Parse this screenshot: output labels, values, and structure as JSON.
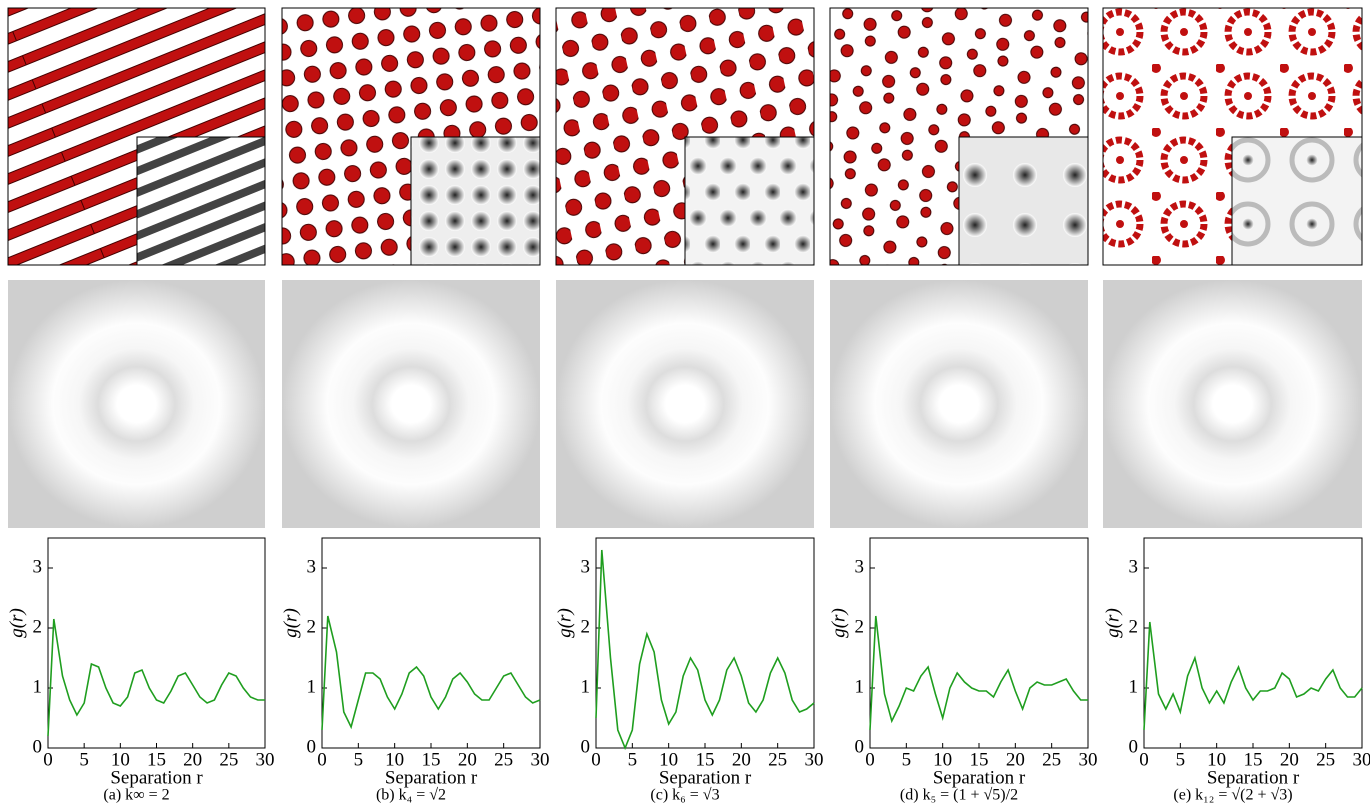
{
  "chart_data": [
    {
      "type": "line",
      "caption": "(a) k∞ = 2",
      "xlabel": "Separation r",
      "ylabel": "g(r)",
      "color": "#1f9e1f",
      "xlim": [
        0,
        30
      ],
      "ylim": [
        0,
        3.5
      ],
      "xticks": [
        0,
        5,
        10,
        15,
        20,
        25,
        30
      ],
      "yticks": [
        0,
        1,
        2,
        3
      ],
      "x": [
        0,
        0.8,
        2,
        3,
        4,
        5,
        6,
        7,
        8,
        9,
        10,
        11,
        12,
        13,
        14,
        15,
        16,
        17,
        18,
        19,
        20,
        21,
        22,
        23,
        24,
        25,
        26,
        27,
        28,
        29,
        30
      ],
      "values": [
        0.2,
        2.15,
        1.2,
        0.8,
        0.55,
        0.75,
        1.4,
        1.35,
        1.0,
        0.75,
        0.7,
        0.85,
        1.25,
        1.3,
        1.0,
        0.8,
        0.75,
        0.95,
        1.2,
        1.25,
        1.05,
        0.85,
        0.75,
        0.8,
        1.05,
        1.25,
        1.2,
        1.0,
        0.85,
        0.8,
        0.8
      ]
    },
    {
      "type": "line",
      "caption": "(b) k₄ = √2",
      "xlabel": "Separation r",
      "ylabel": "g(r)",
      "color": "#1f9e1f",
      "xlim": [
        0,
        30
      ],
      "ylim": [
        0,
        3.5
      ],
      "xticks": [
        0,
        5,
        10,
        15,
        20,
        25,
        30
      ],
      "yticks": [
        0,
        1,
        2,
        3
      ],
      "x": [
        0,
        0.8,
        2,
        3,
        4,
        5,
        6,
        7,
        8,
        9,
        10,
        11,
        12,
        13,
        14,
        15,
        16,
        17,
        18,
        19,
        20,
        21,
        22,
        23,
        24,
        25,
        26,
        27,
        28,
        29,
        30
      ],
      "values": [
        0.3,
        2.2,
        1.6,
        0.6,
        0.35,
        0.8,
        1.25,
        1.25,
        1.15,
        0.85,
        0.65,
        0.9,
        1.25,
        1.35,
        1.2,
        0.85,
        0.65,
        0.85,
        1.15,
        1.25,
        1.1,
        0.9,
        0.8,
        0.8,
        1.0,
        1.2,
        1.25,
        1.05,
        0.85,
        0.75,
        0.8
      ]
    },
    {
      "type": "line",
      "caption": "(c) k₆ = √3",
      "xlabel": "Separation r",
      "ylabel": "g(r)",
      "color": "#1f9e1f",
      "xlim": [
        0,
        30
      ],
      "ylim": [
        0,
        3.5
      ],
      "xticks": [
        0,
        5,
        10,
        15,
        20,
        25,
        30
      ],
      "yticks": [
        0,
        1,
        2,
        3
      ],
      "x": [
        0,
        0.8,
        2,
        3,
        4,
        5,
        6,
        7,
        8,
        9,
        10,
        11,
        12,
        13,
        14,
        15,
        16,
        17,
        18,
        19,
        20,
        21,
        22,
        23,
        24,
        25,
        26,
        27,
        28,
        29,
        30
      ],
      "values": [
        0.5,
        3.3,
        1.5,
        0.3,
        0.0,
        0.3,
        1.4,
        1.9,
        1.6,
        0.8,
        0.4,
        0.6,
        1.2,
        1.5,
        1.3,
        0.8,
        0.55,
        0.8,
        1.3,
        1.5,
        1.2,
        0.75,
        0.6,
        0.8,
        1.25,
        1.5,
        1.25,
        0.8,
        0.6,
        0.65,
        0.75
      ]
    },
    {
      "type": "line",
      "caption": "(d) k₅ = (1 + √5)/2",
      "xlabel": "Separation r",
      "ylabel": "g(r)",
      "color": "#1f9e1f",
      "xlim": [
        0,
        30
      ],
      "ylim": [
        0,
        3.5
      ],
      "xticks": [
        0,
        5,
        10,
        15,
        20,
        25,
        30
      ],
      "yticks": [
        0,
        1,
        2,
        3
      ],
      "x": [
        0,
        0.8,
        2,
        3,
        4,
        5,
        6,
        7,
        8,
        9,
        10,
        11,
        12,
        13,
        14,
        15,
        16,
        17,
        18,
        19,
        20,
        21,
        22,
        23,
        24,
        25,
        26,
        27,
        28,
        29,
        30
      ],
      "values": [
        0.3,
        2.2,
        0.9,
        0.45,
        0.7,
        1.0,
        0.95,
        1.2,
        1.35,
        0.9,
        0.5,
        1.0,
        1.25,
        1.1,
        1.0,
        0.95,
        0.95,
        0.85,
        1.1,
        1.3,
        0.95,
        0.65,
        1.0,
        1.1,
        1.05,
        1.05,
        1.1,
        1.15,
        0.95,
        0.8,
        0.8
      ]
    },
    {
      "type": "line",
      "caption": "(e) k₁₂ = √(2 + √3)",
      "xlabel": "Separation r",
      "ylabel": "g(r)",
      "color": "#1f9e1f",
      "xlim": [
        0,
        30
      ],
      "ylim": [
        0,
        3.5
      ],
      "xticks": [
        0,
        5,
        10,
        15,
        20,
        25,
        30
      ],
      "yticks": [
        0,
        1,
        2,
        3
      ],
      "x": [
        0,
        0.8,
        2,
        3,
        4,
        5,
        6,
        7,
        8,
        9,
        10,
        11,
        12,
        13,
        14,
        15,
        16,
        17,
        18,
        19,
        20,
        21,
        22,
        23,
        24,
        25,
        26,
        27,
        28,
        29,
        30
      ],
      "values": [
        0.3,
        2.1,
        0.9,
        0.65,
        0.9,
        0.6,
        1.2,
        1.5,
        1.0,
        0.75,
        0.95,
        0.75,
        1.1,
        1.35,
        1.0,
        0.8,
        0.95,
        0.95,
        1.0,
        1.25,
        1.15,
        0.85,
        0.9,
        1.0,
        0.95,
        1.15,
        1.3,
        1.0,
        0.85,
        0.85,
        1.0
      ]
    }
  ]
}
